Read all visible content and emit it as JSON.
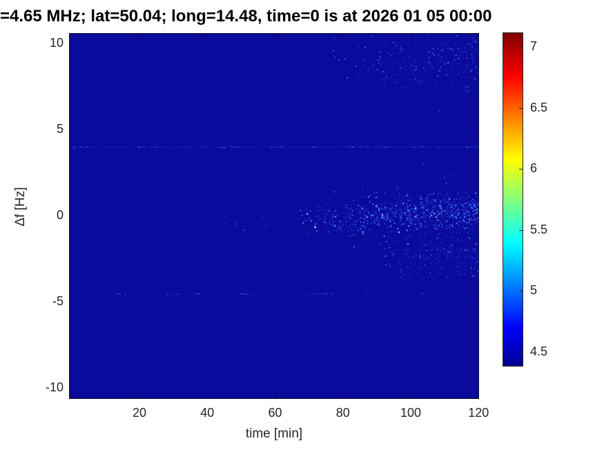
{
  "chart_data": {
    "type": "heatmap",
    "title": "=4.65 MHz;  lat=50.04; long=14.48, time=0 is at 2026 01 05 00:00",
    "xlabel": "time [min]",
    "ylabel": "Δf [Hz]",
    "xlim": [
      0,
      121
    ],
    "ylim": [
      -10.6,
      10.6
    ],
    "x_ticks": [
      20,
      40,
      60,
      80,
      100,
      120
    ],
    "y_ticks": [
      10,
      5,
      0,
      -5,
      -10
    ],
    "grid": false,
    "colormap": "jet",
    "background_value": 4.4,
    "colors": {
      "plot_background": "#0a0a9c",
      "axis_text": "#262626",
      "title_text": "#000000"
    },
    "colorbar": {
      "position": "right",
      "ticks": [
        4.5,
        5,
        5.5,
        6,
        6.5,
        7
      ],
      "value_top": 7.12,
      "value_bottom": 4.38
    },
    "features": [
      {
        "type": "speckle-line",
        "label": "persistent weak line",
        "df": 4.0,
        "t_range": [
          0,
          121
        ],
        "coverage": 0.85,
        "brightness": "low"
      },
      {
        "type": "speckle-segments",
        "label": "intermittent faint line",
        "df": -4.5,
        "segments": [
          [
            12,
            16
          ],
          [
            28,
            32
          ],
          [
            36,
            39
          ],
          [
            49,
            54
          ],
          [
            69,
            77
          ],
          [
            86,
            88
          ],
          [
            103,
            106
          ]
        ],
        "brightness": "low"
      },
      {
        "type": "speckle-cluster",
        "label": "high-band scatter 8-10 Hz",
        "t_range": [
          72,
          121
        ],
        "df_center": 9.0,
        "df_sigma": 0.85,
        "df_drift": 0.0,
        "count": 430,
        "late_bias": 1.8,
        "brightness": "medium"
      },
      {
        "type": "speckle-cluster",
        "label": "near-zero band core",
        "t_range": [
          66,
          121
        ],
        "df_center": 0.05,
        "df_sigma": 0.5,
        "df_drift": 0.5,
        "count": 950,
        "late_bias": 1.6,
        "brightness": "high"
      },
      {
        "type": "speckle-cluster",
        "label": "near-zero halo",
        "t_range": [
          80,
          121
        ],
        "df_center": 0.3,
        "df_sigma": 1.6,
        "df_drift": 0.3,
        "count": 330,
        "late_bias": 1.4,
        "brightness": "low"
      },
      {
        "type": "speckle-cluster",
        "label": "early near-zero wisps",
        "t_range": [
          44,
          58
        ],
        "df_center": -0.5,
        "df_sigma": 0.3,
        "df_drift": 0.0,
        "count": 45,
        "late_bias": 1.0,
        "brightness": "low"
      },
      {
        "type": "speckle-cluster",
        "label": "minus-two band",
        "t_range": [
          90,
          121
        ],
        "df_center": -2.2,
        "df_sigma": 0.55,
        "df_drift": -0.3,
        "count": 240,
        "late_bias": 1.3,
        "brightness": "medium"
      },
      {
        "type": "speckle-cluster",
        "label": "minus-3.3 wisps",
        "t_range": [
          94,
          121
        ],
        "df_center": -3.3,
        "df_sigma": 0.25,
        "df_drift": 0.0,
        "count": 80,
        "late_bias": 1.2,
        "brightness": "low"
      },
      {
        "type": "speckle-cluster",
        "label": "upper-mid sparse dots",
        "t_range": [
          100,
          121
        ],
        "df_center": 4.8,
        "df_sigma": 1.6,
        "df_drift": 0.0,
        "count": 28,
        "late_bias": 1.0,
        "brightness": "faint"
      },
      {
        "type": "uniform-noise",
        "label": "stray faint dots",
        "count": 80,
        "brightness": "faint"
      }
    ]
  }
}
